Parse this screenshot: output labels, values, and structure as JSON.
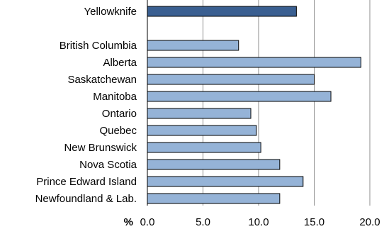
{
  "chart_data": {
    "type": "bar",
    "orientation": "horizontal",
    "title": "",
    "xlabel": "%",
    "ylabel": "",
    "xlim": [
      0,
      20
    ],
    "x_ticks": [
      "0.0",
      "5.0",
      "10.0",
      "15.0",
      "20.0"
    ],
    "grid": "vertical gridlines",
    "legend": "none",
    "highlight": {
      "category": "Yellowknife",
      "value": 13.4,
      "color": "#3a5f91"
    },
    "categories": [
      "British Columbia",
      "Alberta",
      "Saskatchewan",
      "Manitoba",
      "Ontario",
      "Quebec",
      "New Brunswick",
      "Nova Scotia",
      "Prince Edward Island",
      "Newfoundland & Lab."
    ],
    "values": [
      8.2,
      19.2,
      15.0,
      16.5,
      9.3,
      9.8,
      10.2,
      11.9,
      14.0,
      11.9
    ],
    "bar_color": "#95b3d7",
    "border_color": "#000000"
  }
}
